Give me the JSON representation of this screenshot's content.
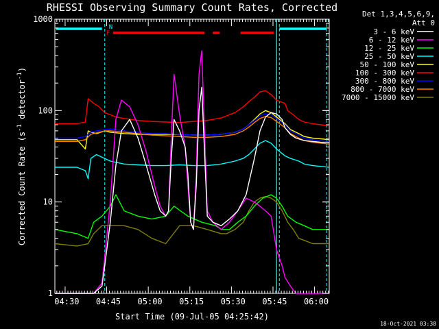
{
  "chart_data": {
    "type": "line",
    "title": "RHESSI Observing Summary Count Rates, Corrected",
    "xlabel": "Start Time (09-Jul-05 04:25:42)",
    "ylabel_main": "Corrected Count Rate (s",
    "ylabel_sup1": "-1",
    "ylabel_mid": " detector",
    "ylabel_sup2": "-1",
    "ylabel_end": ")",
    "yscale": "log",
    "ylim": [
      1,
      1000
    ],
    "xlim_minutes": [
      0,
      99
    ],
    "ytick_labels": [
      "1",
      "10",
      "100",
      "1000"
    ],
    "xtick_labels": [
      "04:30",
      "04:45",
      "05:00",
      "05:15",
      "05:30",
      "05:45",
      "06:00"
    ],
    "legend": {
      "header1": "Det 1,3,4,5,6,9,",
      "header2": "Att 0"
    },
    "flags": {
      "n": "N",
      "f": "F"
    },
    "timestamp": "18-Oct-2021 03:38",
    "series": [
      {
        "name": "3 - 6 keV",
        "color": "#ffffff",
        "x": [
          0,
          14,
          17,
          18,
          20,
          22,
          24,
          27,
          30,
          33,
          36,
          38,
          40,
          41,
          42,
          43,
          45,
          47,
          48,
          49,
          50,
          51,
          52,
          53,
          54,
          55,
          57,
          60,
          63,
          66,
          69,
          72,
          74,
          76,
          78,
          80,
          82,
          83,
          85,
          87,
          90,
          93,
          96,
          99
        ],
        "values": [
          1,
          1,
          1.2,
          2,
          6,
          25,
          60,
          80,
          50,
          25,
          12,
          8,
          7,
          8,
          30,
          80,
          60,
          40,
          20,
          6,
          5,
          15,
          100,
          180,
          35,
          7,
          6,
          5.5,
          6.5,
          8,
          12,
          30,
          60,
          85,
          95,
          92,
          80,
          65,
          55,
          50,
          47,
          46,
          45,
          45
        ]
      },
      {
        "name": "6 - 12 keV",
        "color": "#ff00ff",
        "x": [
          0,
          14,
          17,
          18,
          20,
          22,
          24,
          27,
          30,
          33,
          36,
          38,
          40,
          41,
          42,
          43,
          45,
          47,
          48,
          49,
          50,
          51,
          52,
          53,
          54,
          55,
          57,
          60,
          63,
          66,
          69,
          72,
          74,
          76,
          78,
          80,
          82,
          83,
          85,
          87,
          90,
          93,
          96,
          99
        ],
        "values": [
          1,
          1,
          1.3,
          2.5,
          10,
          80,
          130,
          110,
          70,
          35,
          15,
          9,
          7,
          8,
          50,
          250,
          90,
          40,
          15,
          6,
          5,
          20,
          250,
          450,
          60,
          8,
          6,
          5,
          6,
          8,
          11,
          10,
          9,
          8,
          7,
          3,
          2,
          1.5,
          1.2,
          1,
          1,
          1,
          1,
          1
        ]
      },
      {
        "name": "12 - 25 keV",
        "color": "#00ff00",
        "x": [
          0,
          8,
          12,
          14,
          17,
          20,
          22,
          25,
          30,
          35,
          40,
          43,
          48,
          53,
          58,
          60,
          63,
          66,
          69,
          72,
          75,
          78,
          80,
          82,
          84,
          87,
          90,
          93,
          96,
          99
        ],
        "values": [
          5,
          4.5,
          4,
          6,
          7,
          9,
          12,
          8,
          7,
          6.5,
          7,
          9,
          7,
          6,
          5.5,
          5,
          5,
          6,
          7,
          9,
          11,
          12,
          11,
          9,
          7,
          6,
          5.5,
          5,
          5,
          5
        ]
      },
      {
        "name": "25 - 50 keV",
        "color": "#00ffff",
        "x": [
          0,
          8,
          11,
          12,
          13,
          15,
          20,
          25,
          30,
          35,
          40,
          45,
          50,
          55,
          60,
          65,
          68,
          70,
          72,
          74,
          76,
          78,
          80,
          83,
          85,
          88,
          90,
          93,
          96,
          99
        ],
        "values": [
          24,
          24,
          22,
          18,
          30,
          33,
          28,
          26,
          25.5,
          25,
          25,
          25.5,
          25,
          25,
          26,
          28,
          30,
          33,
          38,
          44,
          47,
          44,
          38,
          32,
          30,
          28,
          26,
          25,
          24.5,
          24
        ]
      },
      {
        "name": "50 - 100 keV",
        "color": "#ffff00",
        "x": [
          0,
          8,
          11,
          12,
          13,
          15,
          18,
          20,
          25,
          30,
          35,
          40,
          45,
          50,
          55,
          60,
          65,
          68,
          70,
          72,
          74,
          76,
          78,
          80,
          83,
          85,
          88,
          90,
          93,
          96,
          99
        ],
        "values": [
          48,
          48,
          38,
          60,
          58,
          56,
          60,
          58,
          56,
          55,
          55,
          55,
          55,
          54,
          54,
          55,
          58,
          63,
          70,
          80,
          92,
          100,
          95,
          85,
          72,
          62,
          56,
          52,
          50,
          49,
          48
        ]
      },
      {
        "name": "100 - 300 keV",
        "color": "#ff0000",
        "x": [
          0,
          8,
          11,
          12,
          14,
          16,
          18,
          20,
          22,
          25,
          30,
          35,
          40,
          45,
          50,
          55,
          60,
          65,
          68,
          70,
          72,
          74,
          76,
          78,
          80,
          83,
          84,
          86,
          88,
          90,
          93,
          96,
          99
        ],
        "values": [
          72,
          72,
          75,
          135,
          120,
          110,
          95,
          90,
          85,
          82,
          78,
          76,
          75,
          74,
          76,
          78,
          83,
          95,
          110,
          125,
          140,
          160,
          165,
          150,
          130,
          120,
          100,
          90,
          80,
          75,
          72,
          70,
          68
        ]
      },
      {
        "name": "300 - 800 keV",
        "color": "#0000ff",
        "x": [
          0,
          8,
          11,
          13,
          15,
          18,
          20,
          25,
          30,
          35,
          40,
          45,
          50,
          55,
          60,
          65,
          68,
          70,
          72,
          74,
          76,
          78,
          80,
          83,
          85,
          88,
          90,
          93,
          96,
          99
        ],
        "values": [
          50,
          50,
          52,
          58,
          60,
          62,
          63,
          60,
          58,
          56,
          56,
          55,
          54,
          54,
          55,
          58,
          63,
          70,
          78,
          88,
          92,
          90,
          82,
          70,
          60,
          54,
          50,
          48,
          47,
          46
        ]
      },
      {
        "name": "800 - 7000 keV",
        "color": "#ff8000",
        "x": [
          0,
          8,
          11,
          13,
          15,
          18,
          20,
          25,
          30,
          35,
          40,
          45,
          50,
          55,
          60,
          65,
          68,
          70,
          72,
          74,
          76,
          78,
          80,
          83,
          85,
          88,
          90,
          93,
          96,
          99
        ],
        "values": [
          46,
          46,
          48,
          55,
          57,
          60,
          60,
          58,
          56,
          54,
          53,
          52,
          51,
          51,
          52,
          55,
          60,
          66,
          74,
          82,
          86,
          84,
          76,
          65,
          56,
          50,
          47,
          45,
          44,
          43
        ]
      },
      {
        "name": "7000 - 15000 keV",
        "color": "#808000",
        "x": [
          0,
          8,
          12,
          14,
          17,
          20,
          25,
          30,
          35,
          40,
          45,
          50,
          55,
          60,
          62,
          65,
          68,
          70,
          72,
          74,
          76,
          78,
          80,
          82,
          84,
          86,
          88,
          90,
          93,
          96,
          99
        ],
        "values": [
          3.5,
          3.3,
          3.5,
          4.5,
          5.5,
          5.5,
          5.5,
          5,
          4,
          3.5,
          5.5,
          5.5,
          5,
          4.5,
          4.5,
          5,
          6,
          8,
          10,
          11,
          11.5,
          11,
          10,
          8,
          6,
          5,
          4,
          3.8,
          3.5,
          3.5,
          3.5
        ]
      }
    ]
  }
}
